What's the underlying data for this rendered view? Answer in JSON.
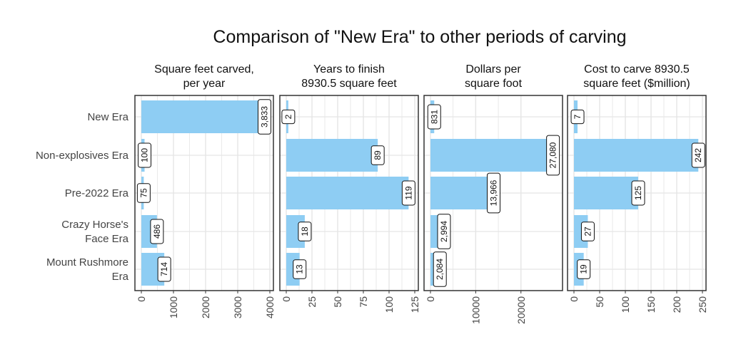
{
  "chart_data": {
    "type": "bar",
    "orientation": "horizontal",
    "title": "Comparison of \"New Era\" to other periods of carving",
    "categories": [
      "New Era",
      "Non-explosives Era",
      "Pre-2022 Era",
      "Crazy Horse's Face Era",
      "Mount Rushmore Era"
    ],
    "category_labels": [
      [
        "New Era"
      ],
      [
        "Non-explosives Era"
      ],
      [
        "Pre-2022 Era"
      ],
      [
        "Crazy Horse's",
        "Face Era"
      ],
      [
        "Mount Rushmore",
        "Era"
      ]
    ],
    "colors": {
      "bar": "#8ecdf3",
      "grid": "#e5e5e5",
      "panel_border": "#333333"
    },
    "panels": [
      {
        "title_lines": [
          "Square feet carved,",
          "per year"
        ],
        "values": [
          3833,
          100,
          75,
          486,
          714
        ],
        "labels": [
          "3,833",
          "100",
          "75",
          "486",
          "714"
        ],
        "xlim": [
          0,
          4000
        ],
        "ticks": [
          0,
          1000,
          2000,
          3000,
          4000
        ],
        "tick_labels": [
          "0",
          "1000",
          "2000",
          "3000",
          "4000"
        ]
      },
      {
        "title_lines": [
          "Years to finish",
          "8930.5 square feet"
        ],
        "values": [
          2,
          89,
          119,
          18,
          13
        ],
        "labels": [
          "2",
          "89",
          "119",
          "18",
          "13"
        ],
        "xlim": [
          0,
          125
        ],
        "ticks": [
          0,
          25,
          50,
          75,
          100,
          125
        ],
        "tick_labels": [
          "0",
          "25",
          "50",
          "75",
          "100",
          "125"
        ]
      },
      {
        "title_lines": [
          "Dollars per",
          "square foot"
        ],
        "values": [
          831,
          27080,
          13966,
          2994,
          2084
        ],
        "labels": [
          "831",
          "27,080",
          "13,966",
          "2,994",
          "2,084"
        ],
        "xlim": [
          0,
          28400
        ],
        "ticks": [
          0,
          10000,
          20000
        ],
        "tick_labels": [
          "0",
          "10000",
          "20000"
        ]
      },
      {
        "title_lines": [
          "Cost to carve 8930.5",
          "square feet ($million)"
        ],
        "values": [
          7,
          242,
          125,
          27,
          19
        ],
        "labels": [
          "7",
          "242",
          "125",
          "27",
          "19"
        ],
        "xlim": [
          0,
          250
        ],
        "ticks": [
          0,
          50,
          100,
          150,
          200,
          250
        ],
        "tick_labels": [
          "0",
          "50",
          "100",
          "150",
          "200",
          "250"
        ]
      }
    ]
  }
}
